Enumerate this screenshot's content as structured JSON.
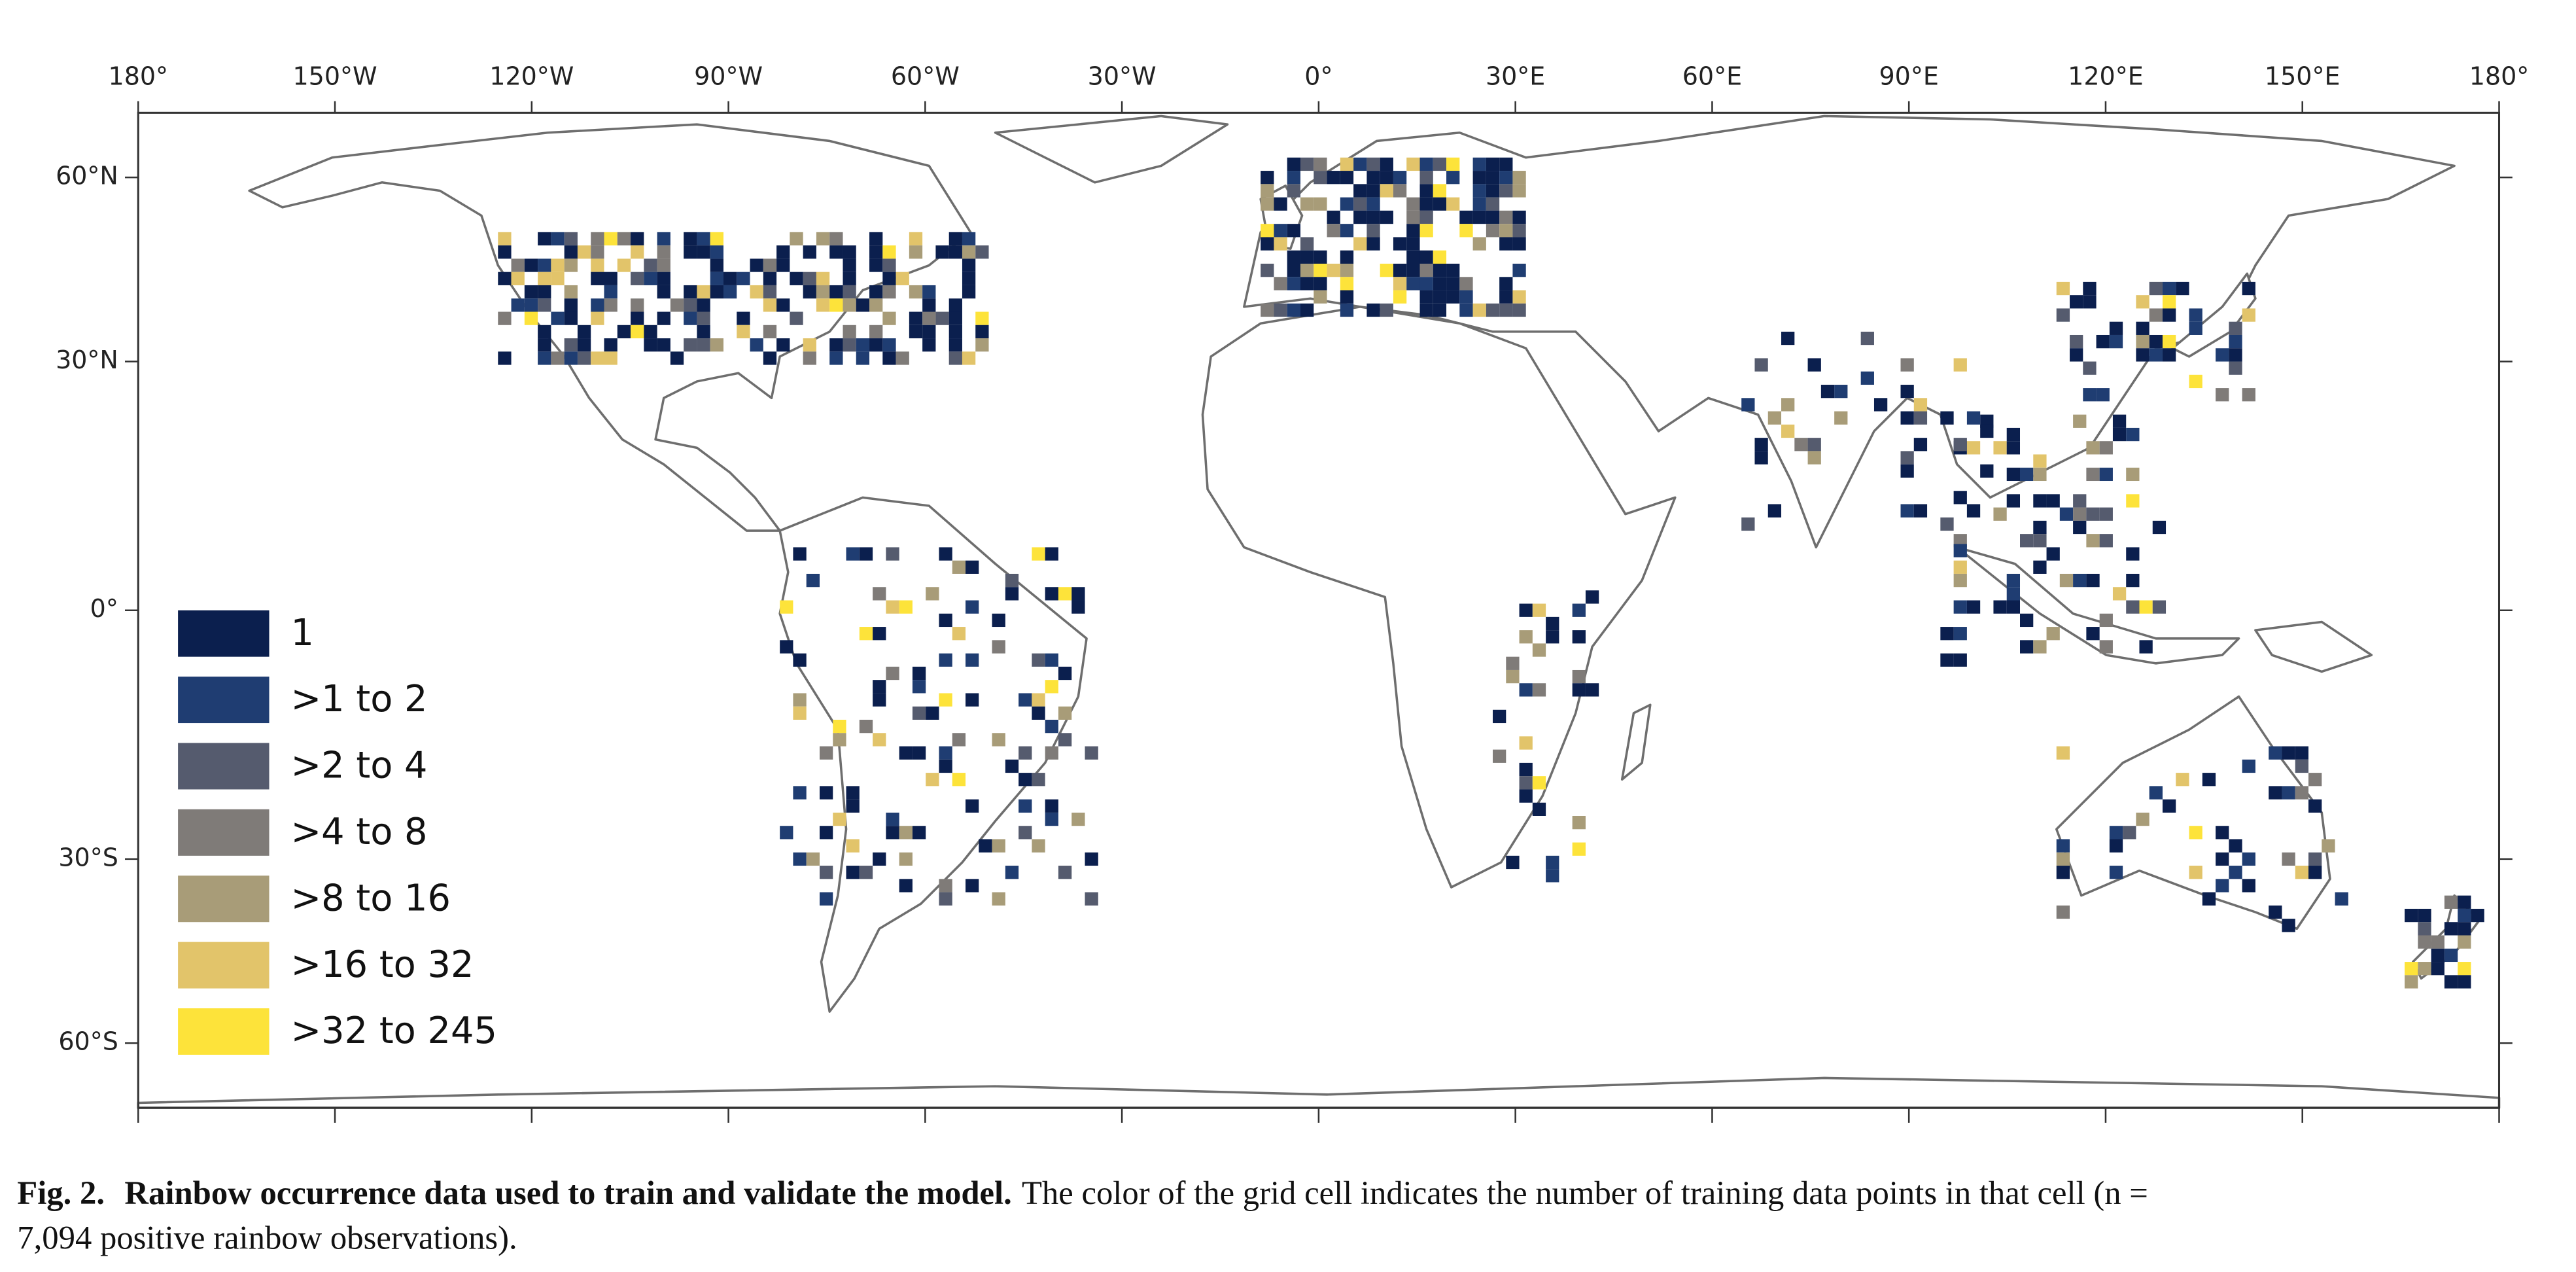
{
  "map": {
    "lon_ticks": [
      {
        "value": -180,
        "label": "180°"
      },
      {
        "value": -150,
        "label": "150°W"
      },
      {
        "value": -120,
        "label": "120°W"
      },
      {
        "value": -90,
        "label": "90°W"
      },
      {
        "value": -60,
        "label": "60°W"
      },
      {
        "value": -30,
        "label": "30°W"
      },
      {
        "value": 0,
        "label": "0°"
      },
      {
        "value": 30,
        "label": "30°E"
      },
      {
        "value": 60,
        "label": "60°E"
      },
      {
        "value": 90,
        "label": "90°E"
      },
      {
        "value": 120,
        "label": "120°E"
      },
      {
        "value": 150,
        "label": "150°E"
      },
      {
        "value": 180,
        "label": "180°"
      }
    ],
    "lat_ticks": [
      {
        "value": 60,
        "label": "60°N"
      },
      {
        "value": 30,
        "label": "30°N"
      },
      {
        "value": 0,
        "label": "0°"
      },
      {
        "value": -30,
        "label": "30°S"
      },
      {
        "value": -60,
        "label": "60°S"
      }
    ],
    "legend": [
      {
        "label": "1",
        "color": "#0b1f4e"
      },
      {
        "label": ">1 to 2",
        "color": "#1f3d72"
      },
      {
        "label": ">2 to 4",
        "color": "#555b6e"
      },
      {
        "label": ">4 to 8",
        "color": "#7f7b78"
      },
      {
        "label": ">8 to 16",
        "color": "#a89c78"
      },
      {
        "label": ">16 to 32",
        "color": "#e2c46a"
      },
      {
        "label": ">32 to 245",
        "color": "#fde33a"
      }
    ]
  },
  "caption": {
    "label": "Fig. 2.",
    "title": "Rainbow occurrence data used to train and validate the model.",
    "text_line1": "The color of the grid cell indicates the number of training data points in that cell (n =",
    "text_line2": "7,094 positive rainbow observations)."
  }
}
